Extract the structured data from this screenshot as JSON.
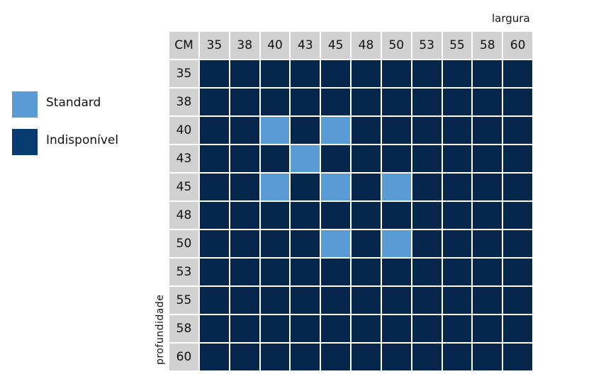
{
  "axis_labels": {
    "top": "largura",
    "side": "profundidade"
  },
  "legend": [
    {
      "name": "Standard",
      "color": "#5b9bd5"
    },
    {
      "name": "Indisponível",
      "color": "#073a70"
    }
  ],
  "table": {
    "corner": "CM",
    "columns": [
      "35",
      "38",
      "40",
      "43",
      "45",
      "48",
      "50",
      "53",
      "55",
      "58",
      "60"
    ],
    "rows": [
      {
        "label": "35",
        "cells": [
          "#06274b",
          "#06274b",
          "#06274b",
          "#06274b",
          "#06274b",
          "#06274b",
          "#06274b",
          "#06274b",
          "#06274b",
          "#06274b",
          "#06274b"
        ]
      },
      {
        "label": "38",
        "cells": [
          "#06274b",
          "#06274b",
          "#06274b",
          "#06274b",
          "#06274b",
          "#06274b",
          "#06274b",
          "#06274b",
          "#06274b",
          "#06274b",
          "#06274b"
        ]
      },
      {
        "label": "40",
        "cells": [
          "#06274b",
          "#06274b",
          "#5b9bd5",
          "#06274b",
          "#5b9bd5",
          "#06274b",
          "#06274b",
          "#06274b",
          "#06274b",
          "#06274b",
          "#06274b"
        ]
      },
      {
        "label": "43",
        "cells": [
          "#06274b",
          "#06274b",
          "#06274b",
          "#5b9bd5",
          "#06274b",
          "#06274b",
          "#06274b",
          "#06274b",
          "#06274b",
          "#06274b",
          "#06274b"
        ]
      },
      {
        "label": "45",
        "cells": [
          "#06274b",
          "#06274b",
          "#5b9bd5",
          "#06274b",
          "#5b9bd5",
          "#06274b",
          "#5b9bd5",
          "#06274b",
          "#06274b",
          "#06274b",
          "#06274b"
        ]
      },
      {
        "label": "48",
        "cells": [
          "#06274b",
          "#06274b",
          "#06274b",
          "#06274b",
          "#06274b",
          "#06274b",
          "#06274b",
          "#06274b",
          "#06274b",
          "#06274b",
          "#06274b"
        ]
      },
      {
        "label": "50",
        "cells": [
          "#06274b",
          "#06274b",
          "#06274b",
          "#06274b",
          "#5b9bd5",
          "#06274b",
          "#5b9bd5",
          "#06274b",
          "#06274b",
          "#06274b",
          "#06274b"
        ]
      },
      {
        "label": "53",
        "cells": [
          "#06274b",
          "#06274b",
          "#06274b",
          "#06274b",
          "#06274b",
          "#06274b",
          "#06274b",
          "#06274b",
          "#06274b",
          "#06274b",
          "#06274b"
        ]
      },
      {
        "label": "55",
        "cells": [
          "#06274b",
          "#06274b",
          "#06274b",
          "#06274b",
          "#06274b",
          "#06274b",
          "#06274b",
          "#06274b",
          "#06274b",
          "#06274b",
          "#06274b"
        ]
      },
      {
        "label": "58",
        "cells": [
          "#06274b",
          "#06274b",
          "#06274b",
          "#06274b",
          "#06274b",
          "#06274b",
          "#06274b",
          "#06274b",
          "#06274b",
          "#06274b",
          "#06274b"
        ]
      },
      {
        "label": "60",
        "cells": [
          "#06274b",
          "#06274b",
          "#06274b",
          "#06274b",
          "#06274b",
          "#06274b",
          "#06274b",
          "#06274b",
          "#06274b",
          "#06274b",
          "#06274b"
        ]
      }
    ]
  }
}
